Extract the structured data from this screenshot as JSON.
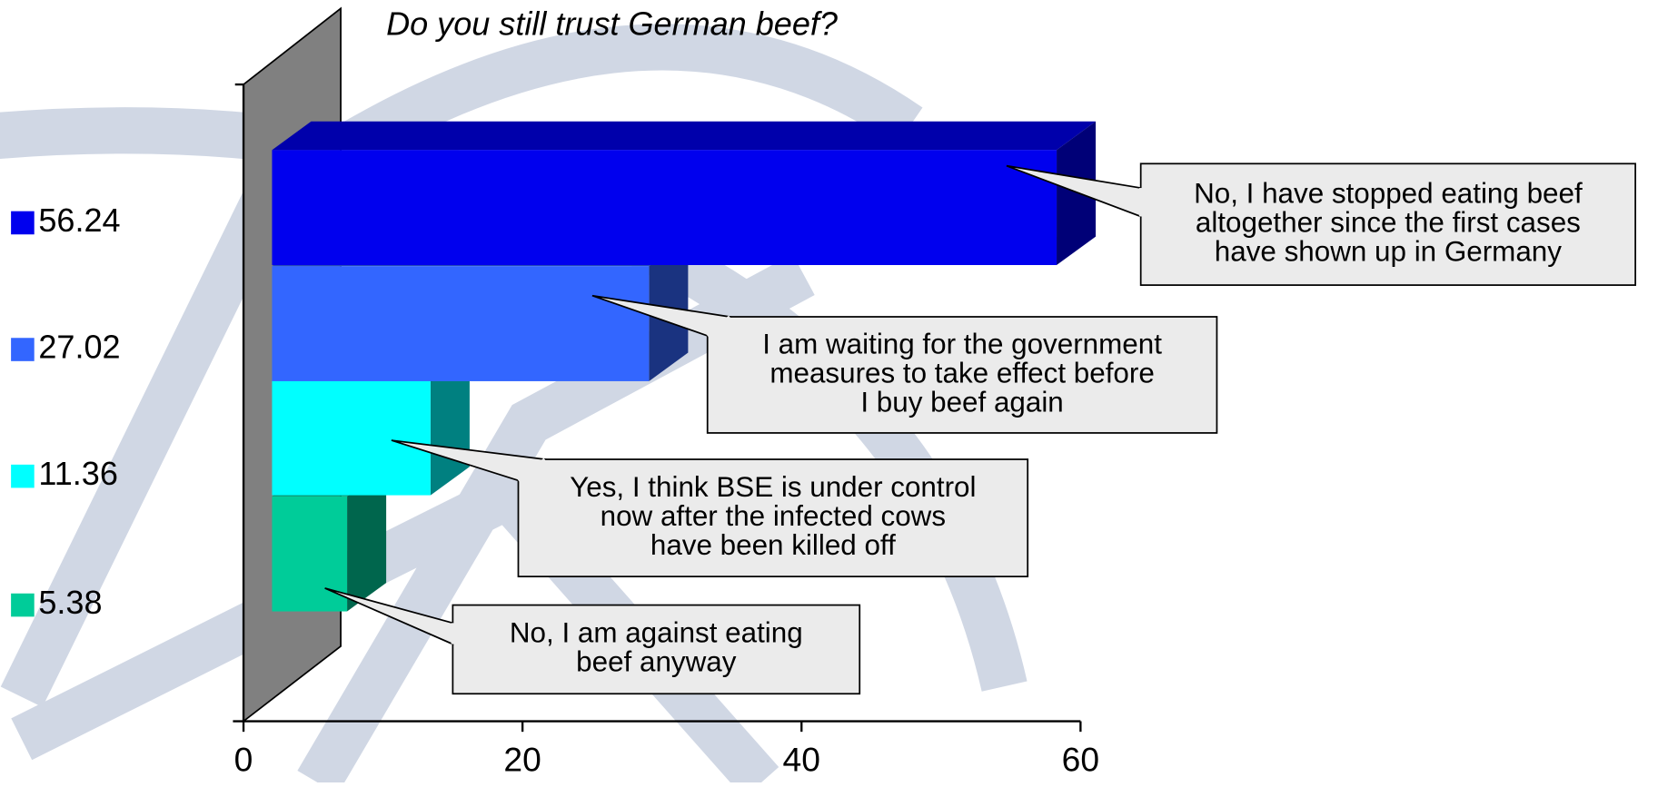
{
  "chart_data": {
    "type": "bar3d",
    "orientation": "horizontal",
    "title": "Do you still trust German beef?",
    "categories": [
      [
        "No, I have stopped eating beef",
        "altogether since the first cases",
        "have shown up in Germany"
      ],
      [
        "I am waiting for the government",
        "measures to take effect before",
        "I buy beef again"
      ],
      [
        "Yes, I think BSE is under control",
        "now after the infected cows",
        "have been killed off"
      ],
      [
        "No, I am against eating",
        "beef anyway"
      ]
    ],
    "values": [
      56.24,
      27.02,
      11.36,
      5.38
    ],
    "colors": [
      "#0000ee",
      "#3366ff",
      "#00ffff",
      "#00cc99"
    ],
    "xlim": [
      0,
      60
    ],
    "xticks": [
      0,
      20,
      40,
      60
    ]
  }
}
